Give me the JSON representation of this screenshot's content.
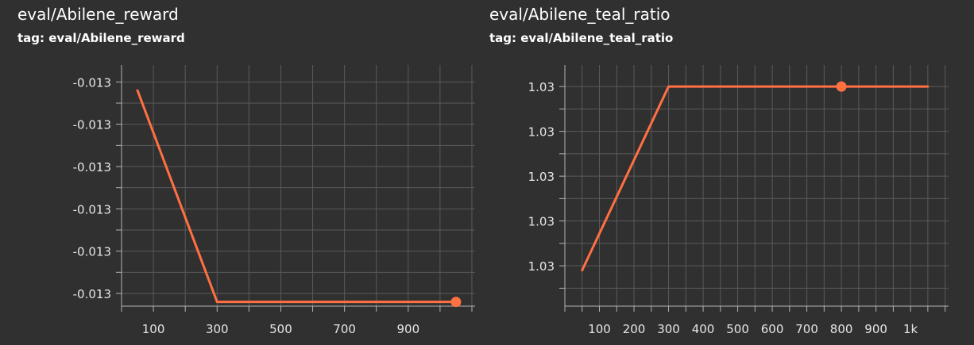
{
  "colors": {
    "background": "#303030",
    "grid": "#5a5a5a",
    "axis": "#b4b4b4",
    "series": "#ff7043"
  },
  "cards": [
    {
      "title": "eval/Abilene_reward",
      "tag": "tag: eval/Abilene_reward"
    },
    {
      "title": "eval/Abilene_teal_ratio",
      "tag": "tag: eval/Abilene_teal_ratio"
    }
  ],
  "chart_data": [
    {
      "type": "line",
      "title": "eval/Abilene_reward",
      "subtitle": "tag: eval/Abilene_reward",
      "xlabel": "",
      "ylabel": "",
      "grid": true,
      "xlim": [
        0,
        1110
      ],
      "ylim": [
        -0.01353,
        -0.01296
      ],
      "xticks": [
        100,
        300,
        500,
        700,
        900
      ],
      "xtick_labels": [
        "100",
        "300",
        "500",
        "700",
        "900"
      ],
      "yticks": [
        -0.0135,
        -0.0134,
        -0.0133,
        -0.0132,
        -0.0131,
        -0.013
      ],
      "ytick_labels": [
        "-0.013",
        "-0.013",
        "-0.013",
        "-0.013",
        "-0.013",
        "-0.013"
      ],
      "series": [
        {
          "x": [
            50,
            300,
            1050
          ],
          "y": [
            -0.01302,
            -0.01352,
            -0.01352
          ],
          "marker": "last"
        }
      ]
    },
    {
      "type": "line",
      "title": "eval/Abilene_teal_ratio",
      "subtitle": "tag: eval/Abilene_teal_ratio",
      "xlabel": "",
      "ylabel": "",
      "grid": true,
      "xlim": [
        0,
        1110
      ],
      "ylim": [
        1.03155,
        1.03424
      ],
      "xticks": [
        100,
        200,
        300,
        400,
        500,
        600,
        700,
        800,
        900,
        1000
      ],
      "xtick_labels": [
        "100",
        "200",
        "300",
        "400",
        "500",
        "600",
        "700",
        "800",
        "900",
        "1k"
      ],
      "yticks": [
        1.032,
        1.0325,
        1.033,
        1.0335,
        1.034
      ],
      "ytick_labels": [
        "1.03",
        "1.03",
        "1.03",
        "1.03",
        "1.03"
      ],
      "series": [
        {
          "x": [
            50,
            300,
            1050
          ],
          "y": [
            1.03195,
            1.034,
            1.034
          ],
          "marker_x": 800,
          "marker_y": 1.034
        }
      ]
    }
  ]
}
